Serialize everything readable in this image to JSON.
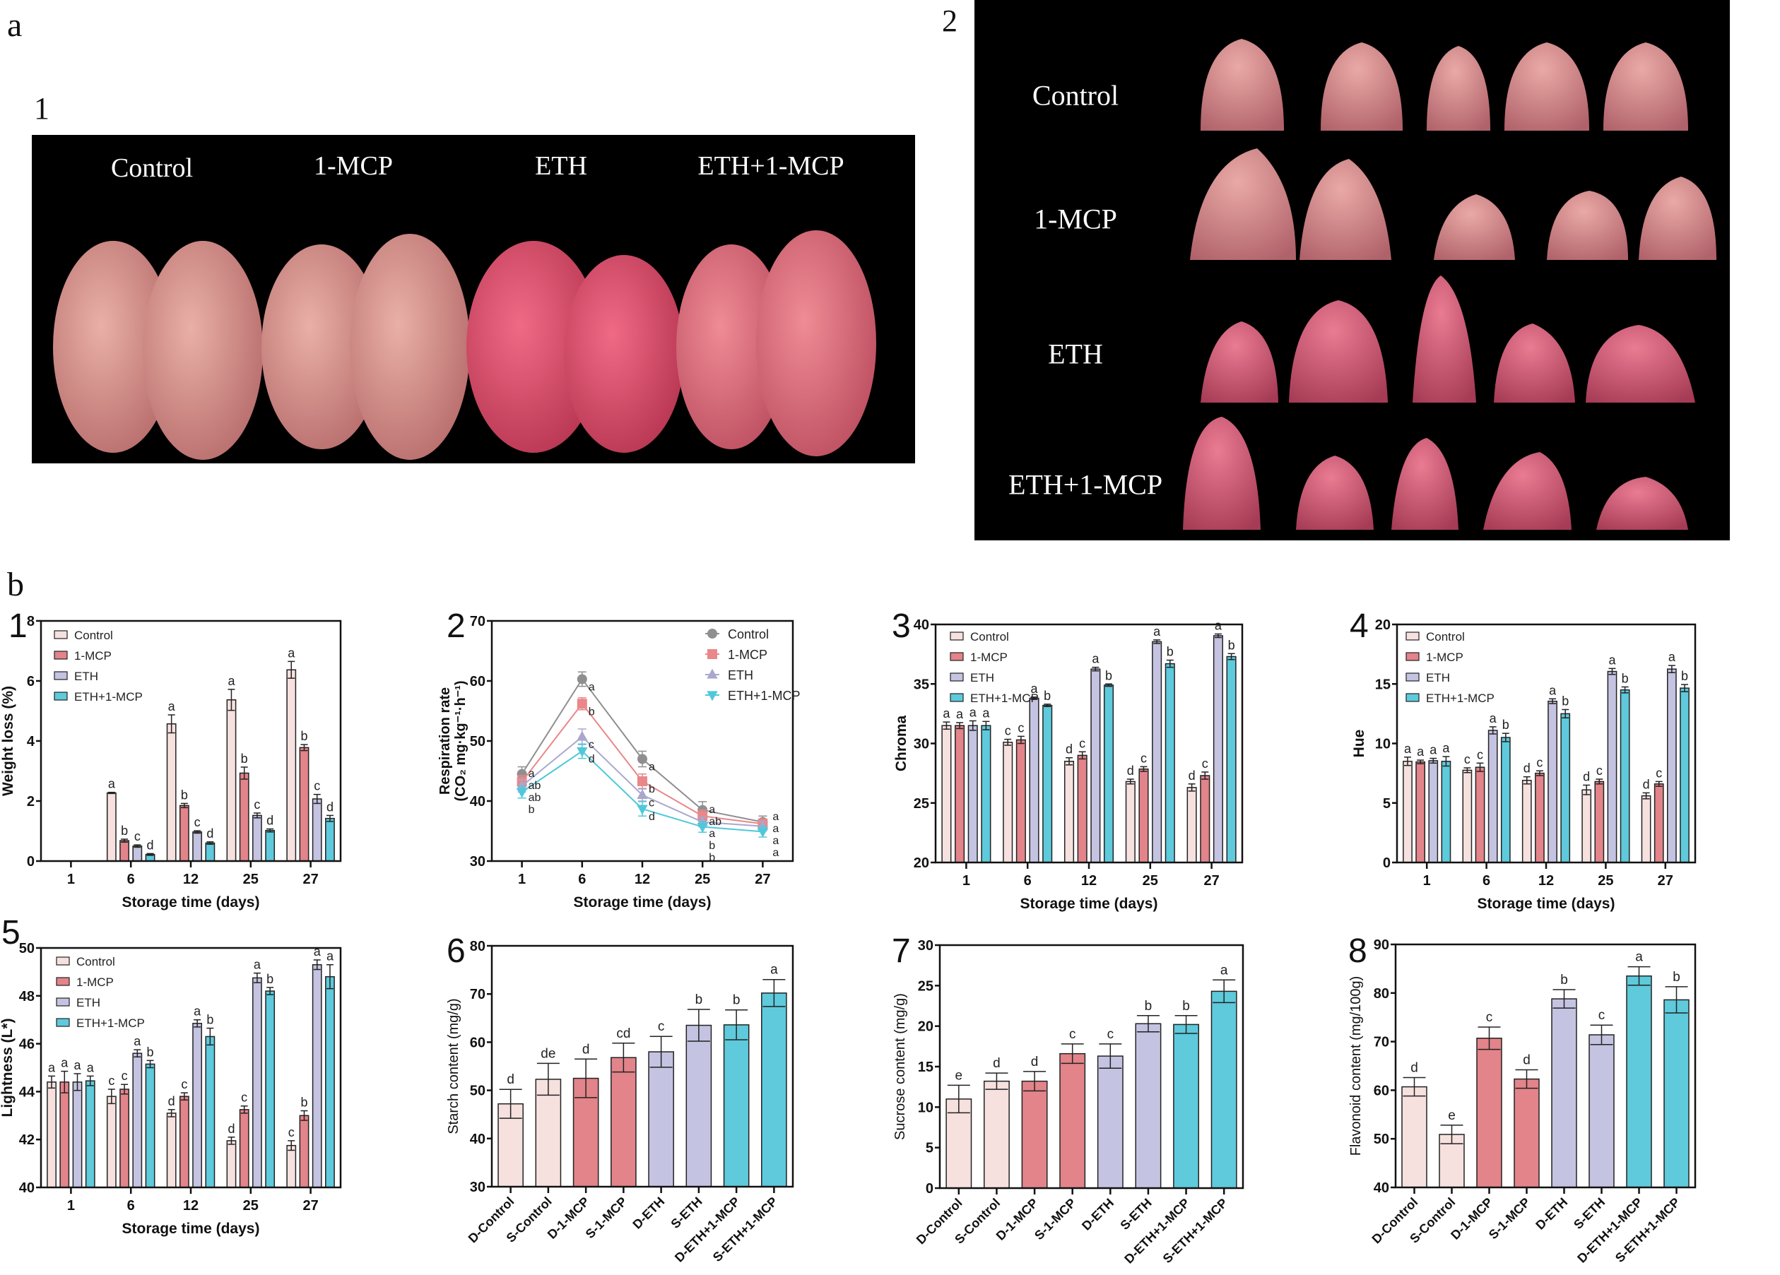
{
  "figure": {
    "part_a": "a",
    "part_b": "b",
    "photo1": {
      "number": "1",
      "labels": [
        "Control",
        "1-MCP",
        "ETH",
        "ETH+1-MCP"
      ]
    },
    "photo2": {
      "number": "2",
      "labels": [
        "Control",
        "1-MCP",
        "ETH",
        "ETH+1-MCP"
      ]
    }
  },
  "colors": {
    "Control": "#f6e1df",
    "1-MCP": "#e2848a",
    "ETH": "#c4c3e1",
    "ETH+1-MCP": "#5ecadb",
    "line_Control": "#8f8f8f",
    "line_1-MCP": "#e9878a",
    "line_ETH": "#a9a8cc",
    "line_ETH+1-MCP": "#4fc8da"
  },
  "chart_data": [
    {
      "number": "1",
      "type": "bar",
      "xlabel": "Storage time (days)",
      "ylabel": "Weight loss (%)",
      "ylim": [
        0,
        8
      ],
      "yticks": [
        0,
        2,
        4,
        6,
        8
      ],
      "legend": "top-left",
      "categories": [
        "1",
        "6",
        "12",
        "25",
        "27"
      ],
      "series": [
        {
          "name": "Control",
          "values": [
            0,
            2.27,
            4.57,
            5.37,
            6.37
          ],
          "errors": [
            0,
            0.02,
            0.3,
            0.35,
            0.28
          ],
          "letters": [
            "",
            "a",
            "a",
            "a",
            "a"
          ]
        },
        {
          "name": "1-MCP",
          "values": [
            0,
            0.68,
            1.85,
            2.93,
            3.78
          ],
          "errors": [
            0,
            0.05,
            0.07,
            0.2,
            0.1
          ],
          "letters": [
            "",
            "b",
            "b",
            "b",
            "b"
          ]
        },
        {
          "name": "ETH",
          "values": [
            0,
            0.5,
            0.97,
            1.52,
            2.07
          ],
          "errors": [
            0,
            0.04,
            0.04,
            0.08,
            0.15
          ],
          "letters": [
            "",
            "c",
            "c",
            "c",
            "c"
          ]
        },
        {
          "name": "ETH+1-MCP",
          "values": [
            0,
            0.22,
            0.6,
            1.02,
            1.42
          ],
          "errors": [
            0,
            0.03,
            0.04,
            0.05,
            0.1
          ],
          "letters": [
            "",
            "d",
            "d",
            "d",
            "d"
          ]
        }
      ]
    },
    {
      "number": "2",
      "type": "line",
      "xlabel": "Storage time (days)",
      "ylabel": [
        "Respiration rate",
        "(CO₂ mg·kg⁻¹·h⁻¹)"
      ],
      "ylim": [
        30,
        70
      ],
      "yticks": [
        30,
        40,
        50,
        60,
        70
      ],
      "legend": "top-right",
      "categories": [
        "1",
        "6",
        "12",
        "25",
        "27"
      ],
      "series": [
        {
          "name": "Control",
          "marker": "circle",
          "values": [
            44.5,
            60.3,
            47.0,
            38.5,
            36.5
          ],
          "errors": [
            1.2,
            1.2,
            1.3,
            1.4,
            1.0
          ],
          "letters": [
            "a",
            "a",
            "a",
            "a",
            "a"
          ]
        },
        {
          "name": "1-MCP",
          "marker": "square",
          "values": [
            43.2,
            56.2,
            43.3,
            37.5,
            36.2
          ],
          "errors": [
            1.0,
            1.0,
            1.2,
            1.0,
            0.8
          ],
          "letters": [
            "ab",
            "b",
            "b",
            "ab",
            "a"
          ]
        },
        {
          "name": "ETH",
          "marker": "triangle-up",
          "values": [
            42.5,
            50.7,
            41.0,
            36.5,
            35.8
          ],
          "errors": [
            1.0,
            1.3,
            1.0,
            0.8,
            0.8
          ],
          "letters": [
            "ab",
            "c",
            "c",
            "a",
            "a"
          ]
        },
        {
          "name": "ETH+1-MCP",
          "marker": "triangle-down",
          "values": [
            41.5,
            48.3,
            38.7,
            35.7,
            34.9
          ],
          "errors": [
            1.0,
            1.2,
            1.2,
            0.9,
            0.9
          ],
          "letters": [
            "b",
            "d",
            "d",
            "b",
            "a"
          ]
        }
      ],
      "extra_letters": [
        {
          "category": "25",
          "text": "b"
        }
      ]
    },
    {
      "number": "3",
      "type": "bar",
      "xlabel": "Storage time (days)",
      "ylabel": "Chroma",
      "ylim": [
        20,
        40
      ],
      "yticks": [
        20,
        25,
        30,
        35,
        40
      ],
      "legend": "top-left",
      "categories": [
        "1",
        "6",
        "12",
        "25",
        "27"
      ],
      "series": [
        {
          "name": "Control",
          "values": [
            31.5,
            30.1,
            28.5,
            26.8,
            26.3
          ],
          "errors": [
            0.3,
            0.25,
            0.3,
            0.2,
            0.3
          ],
          "letters": [
            "a",
            "c",
            "d",
            "d",
            "d"
          ]
        },
        {
          "name": "1-MCP",
          "values": [
            31.5,
            30.3,
            29.0,
            27.85,
            27.3
          ],
          "errors": [
            0.25,
            0.3,
            0.3,
            0.2,
            0.3
          ],
          "letters": [
            "a",
            "c",
            "c",
            "c",
            "c"
          ]
        },
        {
          "name": "ETH",
          "values": [
            31.5,
            33.8,
            36.25,
            38.55,
            39.05
          ],
          "errors": [
            0.4,
            0.1,
            0.15,
            0.15,
            0.15
          ],
          "letters": [
            "a",
            "a",
            "a",
            "a",
            "a"
          ]
        },
        {
          "name": "ETH+1-MCP",
          "values": [
            31.5,
            33.2,
            34.9,
            36.7,
            37.3
          ],
          "errors": [
            0.35,
            0.1,
            0.1,
            0.3,
            0.25
          ],
          "letters": [
            "a",
            "b",
            "b",
            "b",
            "b"
          ]
        }
      ]
    },
    {
      "number": "4",
      "type": "bar",
      "xlabel": "Storage time (days)",
      "ylabel": "Hue",
      "ylim": [
        0,
        20
      ],
      "yticks": [
        0,
        5,
        10,
        15,
        20
      ],
      "legend": "top-left",
      "categories": [
        "1",
        "6",
        "12",
        "25",
        "27"
      ],
      "series": [
        {
          "name": "Control",
          "values": [
            8.5,
            7.75,
            6.9,
            6.1,
            5.6
          ],
          "errors": [
            0.35,
            0.2,
            0.3,
            0.4,
            0.25
          ],
          "letters": [
            "a",
            "c",
            "d",
            "d",
            "d"
          ]
        },
        {
          "name": "1-MCP",
          "values": [
            8.45,
            8.0,
            7.5,
            6.8,
            6.6
          ],
          "errors": [
            0.15,
            0.35,
            0.2,
            0.2,
            0.2
          ],
          "letters": [
            "a",
            "c",
            "c",
            "c",
            "c"
          ]
        },
        {
          "name": "ETH",
          "values": [
            8.55,
            11.1,
            13.55,
            16.05,
            16.25
          ],
          "errors": [
            0.2,
            0.3,
            0.2,
            0.25,
            0.3
          ],
          "letters": [
            "a",
            "a",
            "a",
            "a",
            "a"
          ]
        },
        {
          "name": "ETH+1-MCP",
          "values": [
            8.5,
            10.5,
            12.5,
            14.5,
            14.65
          ],
          "errors": [
            0.4,
            0.35,
            0.35,
            0.25,
            0.3
          ],
          "letters": [
            "a",
            "b",
            "b",
            "b",
            "b"
          ]
        }
      ]
    },
    {
      "number": "5",
      "type": "bar",
      "xlabel": "Storage time (days)",
      "ylabel": "Lightness (L*)",
      "ylim": [
        40,
        50
      ],
      "yticks": [
        40,
        42,
        44,
        46,
        48,
        50
      ],
      "legend": "top-left",
      "categories": [
        "1",
        "6",
        "12",
        "25",
        "27"
      ],
      "series": [
        {
          "name": "Control",
          "values": [
            44.4,
            43.8,
            43.1,
            41.95,
            41.75
          ],
          "errors": [
            0.25,
            0.3,
            0.15,
            0.15,
            0.2
          ],
          "letters": [
            "a",
            "c",
            "d",
            "d",
            "c"
          ]
        },
        {
          "name": "1-MCP",
          "values": [
            44.4,
            44.1,
            43.8,
            43.25,
            43.0
          ],
          "errors": [
            0.45,
            0.2,
            0.15,
            0.15,
            0.2
          ],
          "letters": [
            "a",
            "c",
            "c",
            "c",
            "b"
          ]
        },
        {
          "name": "ETH",
          "values": [
            44.4,
            45.6,
            46.85,
            48.75,
            49.3
          ],
          "errors": [
            0.35,
            0.15,
            0.15,
            0.2,
            0.2
          ],
          "letters": [
            "a",
            "a",
            "a",
            "a",
            "a"
          ]
        },
        {
          "name": "ETH+1-MCP",
          "values": [
            44.45,
            45.15,
            46.3,
            48.2,
            48.8
          ],
          "errors": [
            0.2,
            0.15,
            0.35,
            0.15,
            0.5
          ],
          "letters": [
            "a",
            "b",
            "b",
            "b",
            "a"
          ]
        }
      ]
    },
    {
      "number": "6",
      "type": "bar",
      "xlabel": "",
      "ylabel": "Starch content (mg/g)",
      "ylim": [
        30,
        80
      ],
      "yticks": [
        30,
        40,
        50,
        60,
        70,
        80
      ],
      "categories": [
        "D-Control",
        "S-Control",
        "D-1-MCP",
        "S-1-MCP",
        "D-ETH",
        "S-ETH",
        "D-ETH+1-MCP",
        "S-ETH+1-MCP"
      ],
      "groups": [
        "Control",
        "Control",
        "1-MCP",
        "1-MCP",
        "ETH",
        "ETH",
        "ETH+1-MCP",
        "ETH+1-MCP"
      ],
      "values": [
        47.2,
        52.3,
        52.5,
        56.8,
        58.0,
        63.5,
        63.6,
        70.2
      ],
      "errors": [
        3.0,
        3.3,
        4.0,
        3.0,
        3.2,
        3.3,
        3.1,
        2.8
      ],
      "letters": [
        "d",
        "de",
        "d",
        "cd",
        "c",
        "b",
        "b",
        "a"
      ]
    },
    {
      "number": "7",
      "type": "bar",
      "xlabel": "",
      "ylabel": "Sucrose content (mg/g)",
      "ylim": [
        0,
        30
      ],
      "yticks": [
        0,
        5,
        10,
        15,
        20,
        25,
        30
      ],
      "categories": [
        "D-Control",
        "S-Control",
        "D-1-MCP",
        "S-1-MCP",
        "D-ETH",
        "S-ETH",
        "D-ETH+1-MCP",
        "S-ETH+1-MCP"
      ],
      "groups": [
        "Control",
        "Control",
        "1-MCP",
        "1-MCP",
        "ETH",
        "ETH",
        "ETH+1-MCP",
        "ETH+1-MCP"
      ],
      "values": [
        11.0,
        13.2,
        13.2,
        16.6,
        16.3,
        20.3,
        20.2,
        24.3
      ],
      "errors": [
        1.7,
        1.0,
        1.2,
        1.2,
        1.5,
        1.0,
        1.1,
        1.4
      ],
      "letters": [
        "e",
        "d",
        "d",
        "c",
        "c",
        "b",
        "b",
        "a"
      ]
    },
    {
      "number": "8",
      "type": "bar",
      "xlabel": "",
      "ylabel": "Flavonoid content (mg/100g)",
      "ylim": [
        40,
        90
      ],
      "yticks": [
        40,
        50,
        60,
        70,
        80,
        90
      ],
      "categories": [
        "D-Control",
        "S-Control",
        "D-1-MCP",
        "S-1-MCP",
        "D-ETH",
        "S-ETH",
        "D-ETH+1-MCP",
        "S-ETH+1-MCP"
      ],
      "groups": [
        "Control",
        "Control",
        "1-MCP",
        "1-MCP",
        "ETH",
        "ETH",
        "ETH+1-MCP",
        "ETH+1-MCP"
      ],
      "values": [
        60.7,
        50.9,
        70.7,
        62.3,
        78.8,
        71.4,
        83.5,
        78.6
      ],
      "errors": [
        1.9,
        1.9,
        2.3,
        1.9,
        1.9,
        2.0,
        1.9,
        2.7
      ],
      "letters": [
        "d",
        "e",
        "c",
        "d",
        "b",
        "c",
        "a",
        "b"
      ]
    }
  ]
}
